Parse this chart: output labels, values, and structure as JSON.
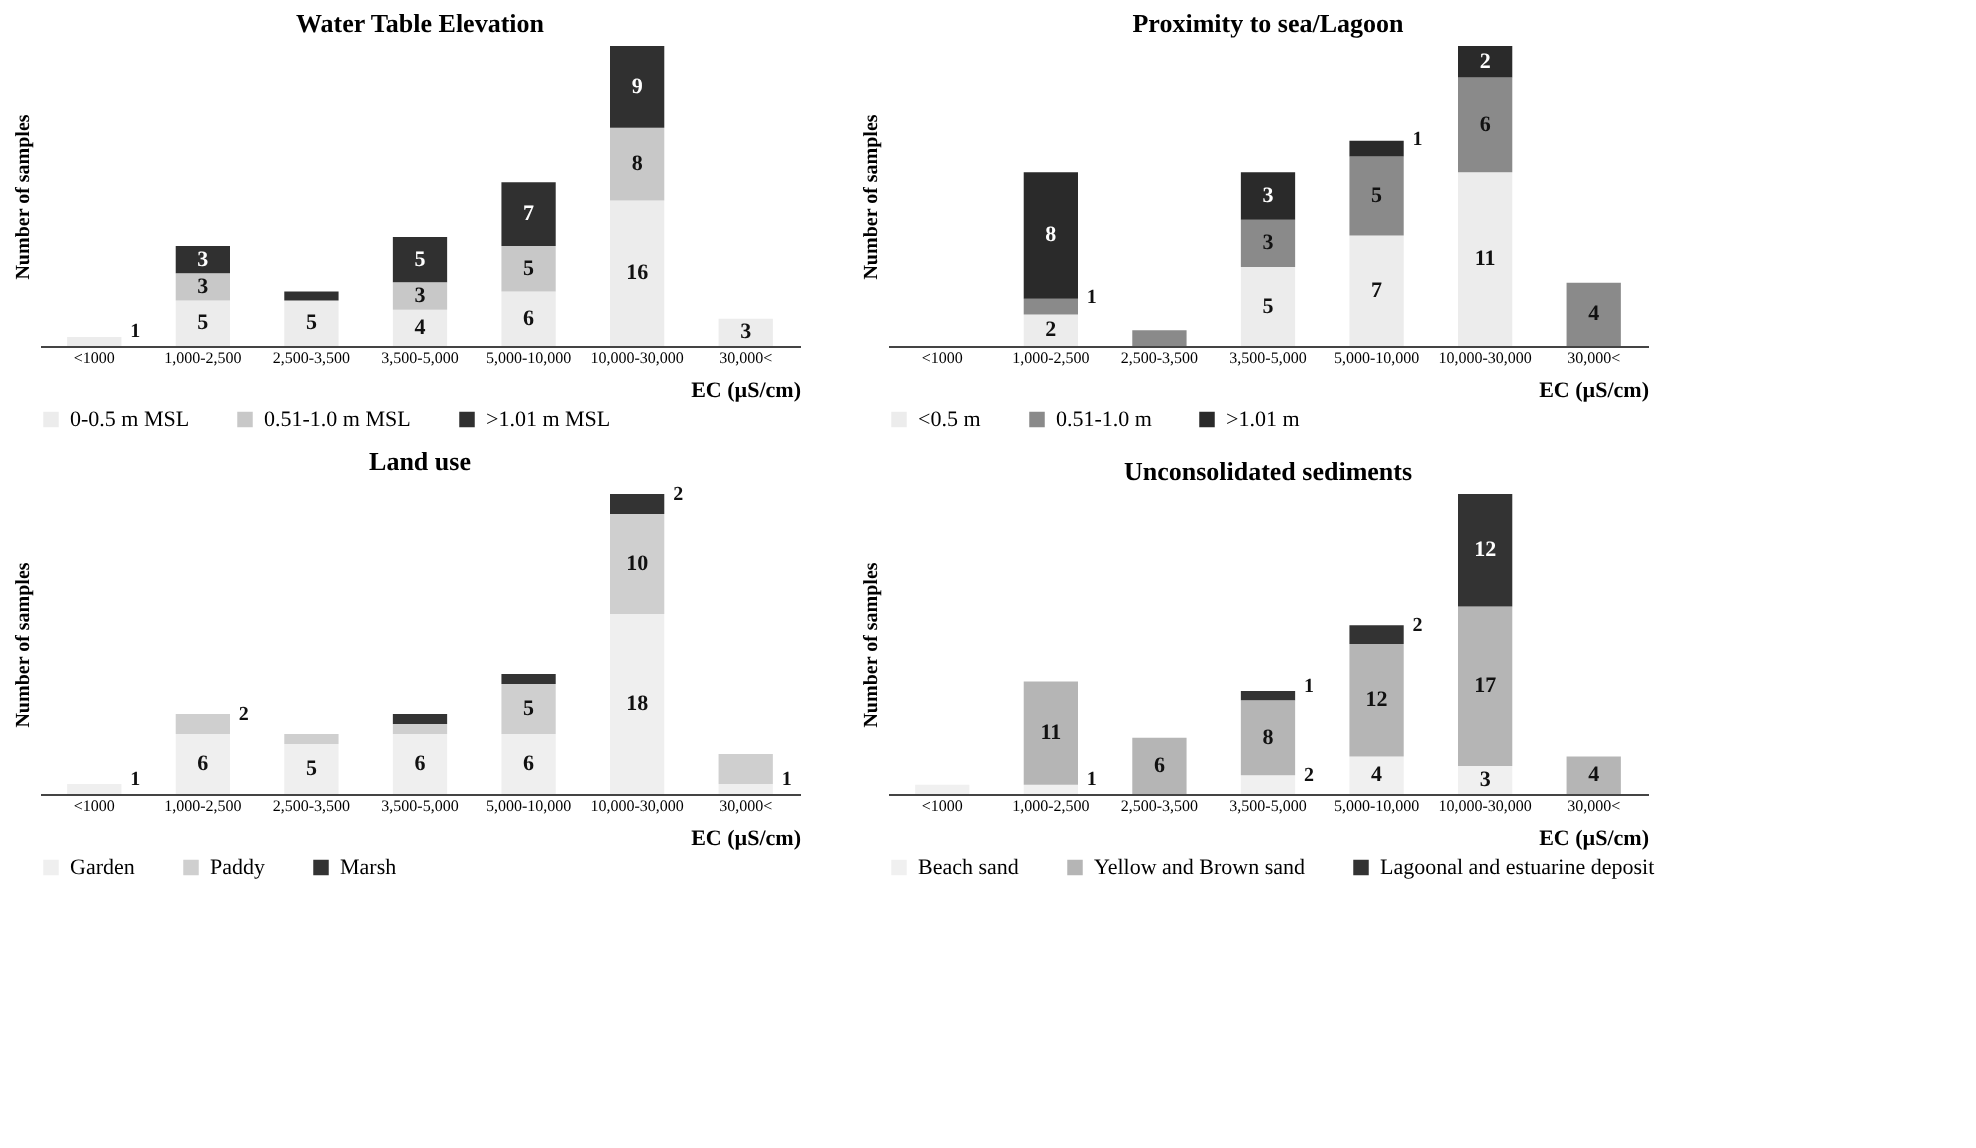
{
  "chart_data": [
    {
      "type": "bar",
      "title": "Water Table Elevation",
      "xlabel": "EC (µS/cm)",
      "ylabel": "Number of samples",
      "stacked": true,
      "legend": "bottom",
      "tick_labels": "x",
      "categories": [
        "<1000",
        "1,000-2,500",
        "2,500-3,500",
        "3,500-5,000",
        "5,000-10,000",
        "10,000-30,000",
        "30,000<"
      ],
      "series": [
        {
          "name": "0-0.5 m MSL",
          "color": "#ececec",
          "values": [
            1,
            5,
            5,
            4,
            6,
            16,
            3
          ],
          "value_labels": [
            "1",
            "5",
            "5",
            "4",
            "6",
            "16",
            "3"
          ]
        },
        {
          "name": "0.51-1.0 m MSL",
          "color": "#c8c8c8",
          "values": [
            0,
            3,
            0,
            3,
            5,
            8,
            0
          ],
          "value_labels": [
            null,
            "3",
            null,
            "3",
            "5",
            "8",
            null
          ]
        },
        {
          "name": ">1.01 m MSL",
          "color": "#303030",
          "values": [
            0,
            3,
            1,
            5,
            7,
            9,
            0
          ],
          "value_labels": [
            null,
            "3",
            null,
            "5",
            "7",
            "9",
            null
          ]
        }
      ]
    },
    {
      "type": "bar",
      "title": "Proximity to sea/Lagoon",
      "xlabel": "EC (µS/cm)",
      "ylabel": "Number of samples",
      "stacked": true,
      "legend": "bottom",
      "tick_labels": "x",
      "categories": [
        "<1000",
        "1,000-2,500",
        "2,500-3,500",
        "3,500-5,000",
        "5,000-10,000",
        "10,000-30,000",
        "30,000<"
      ],
      "series": [
        {
          "name": "<0.5 m",
          "color": "#ececec",
          "values": [
            0,
            2,
            0,
            5,
            7,
            11,
            0
          ],
          "value_labels": [
            null,
            "2",
            null,
            "5",
            "7",
            "11",
            null
          ]
        },
        {
          "name": "0.51-1.0 m",
          "color": "#8a8a8a",
          "values": [
            0,
            1,
            1,
            3,
            5,
            6,
            4
          ],
          "value_labels": [
            null,
            "1",
            null,
            "3",
            "5",
            "6",
            "4"
          ]
        },
        {
          "name": ">1.01 m",
          "color": "#2a2a2a",
          "values": [
            0,
            8,
            0,
            3,
            1,
            2,
            0
          ],
          "value_labels": [
            null,
            "8",
            null,
            "3",
            "1",
            "2",
            null
          ]
        }
      ]
    },
    {
      "type": "bar",
      "title": "Land use",
      "xlabel": "EC (µS/cm)",
      "ylabel": "Number of samples",
      "stacked": true,
      "legend": "bottom",
      "tick_labels": "x",
      "categories": [
        "<1000",
        "1,000-2,500",
        "2,500-3,500",
        "3,500-5,000",
        "5,000-10,000",
        "10,000-30,000",
        "30,000<"
      ],
      "series": [
        {
          "name": "Garden",
          "color": "#efefef",
          "values": [
            1,
            6,
            5,
            6,
            6,
            18,
            1
          ],
          "value_labels": [
            "1",
            "6",
            "5",
            "6",
            "6",
            "18",
            "1"
          ]
        },
        {
          "name": "Paddy",
          "color": "#cfcfcf",
          "values": [
            0,
            2,
            1,
            1,
            5,
            10,
            3
          ],
          "value_labels": [
            null,
            "2",
            null,
            null,
            "5",
            "10",
            null
          ]
        },
        {
          "name": "Marsh",
          "color": "#333333",
          "values": [
            0,
            0,
            0,
            1,
            1,
            2,
            0
          ],
          "value_labels": [
            null,
            null,
            null,
            null,
            null,
            "2",
            null
          ]
        }
      ]
    },
    {
      "type": "bar",
      "title": "Unconsolidated sediments",
      "xlabel": "EC (µS/cm)",
      "ylabel": "Number of samples",
      "stacked": true,
      "legend": "bottom",
      "tick_labels": "x",
      "categories": [
        "<1000",
        "1,000-2,500",
        "2,500-3,500",
        "3,500-5,000",
        "5,000-10,000",
        "10,000-30,000",
        "30,000<"
      ],
      "series": [
        {
          "name": "Beach sand",
          "color": "#f0f0f0",
          "values": [
            1,
            1,
            0,
            2,
            4,
            3,
            0
          ],
          "value_labels": [
            null,
            "1",
            null,
            "2",
            "4",
            "3",
            null
          ]
        },
        {
          "name": "Yellow and Brown sand",
          "color": "#b5b5b5",
          "values": [
            0,
            11,
            6,
            8,
            12,
            17,
            4
          ],
          "value_labels": [
            null,
            "11",
            "6",
            "8",
            "12",
            "17",
            "4"
          ]
        },
        {
          "name": "Lagoonal and estuarine deposit",
          "color": "#333333",
          "values": [
            0,
            0,
            0,
            1,
            2,
            12,
            0
          ],
          "value_labels": [
            null,
            null,
            null,
            "1",
            "2",
            "12",
            null
          ]
        }
      ]
    }
  ]
}
